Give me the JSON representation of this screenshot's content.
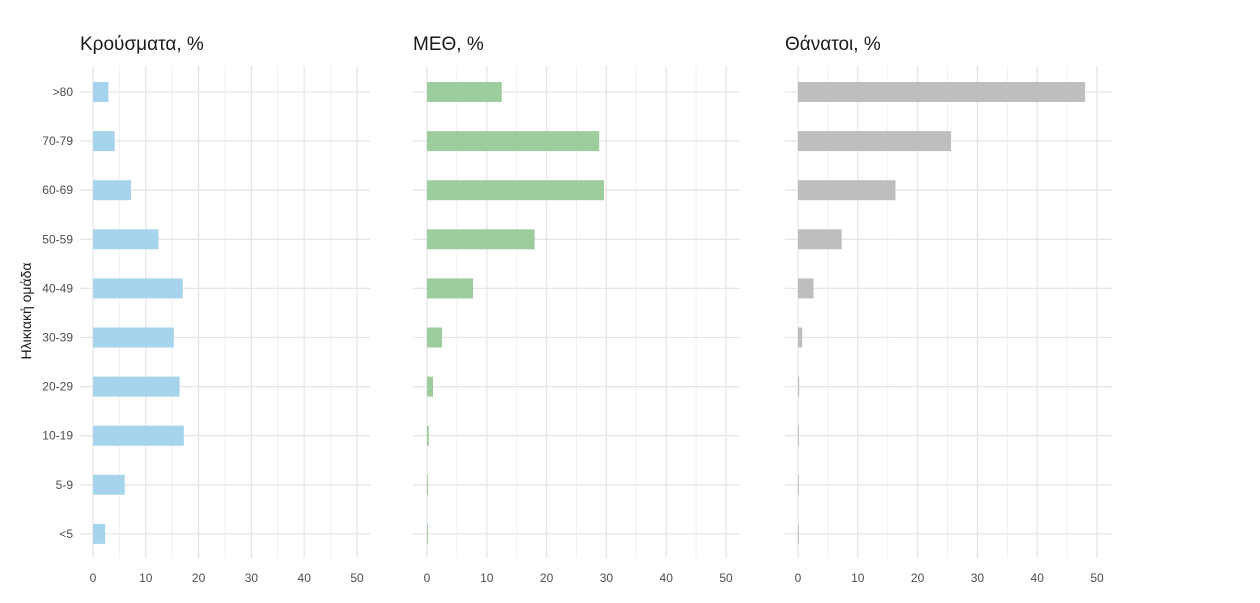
{
  "chart_data": {
    "type": "bar",
    "orientation": "horizontal",
    "ylabel": "Ηλικιακή ομάδα",
    "categories": [
      "<5",
      "5-9",
      "10-19",
      "20-29",
      "30-39",
      "40-49",
      "50-59",
      "60-69",
      "70-79",
      ">80"
    ],
    "grid": true,
    "panels": [
      {
        "title": "Κρούσματα, %",
        "color": "#a6d4ec",
        "xlim": [
          0,
          52
        ],
        "xticks": [
          "0",
          "10",
          "20",
          "30",
          "40",
          "50"
        ],
        "values": [
          2.3,
          6.0,
          17.2,
          16.4,
          15.3,
          17.0,
          12.4,
          7.2,
          4.1,
          2.9
        ]
      },
      {
        "title": "ΜΕΘ, %",
        "color": "#9dcd9c",
        "xlim": [
          0,
          52
        ],
        "xticks": [
          "0",
          "10",
          "20",
          "30",
          "40",
          "50"
        ],
        "values": [
          0.1,
          0.1,
          0.3,
          1.0,
          2.5,
          7.7,
          18.0,
          29.6,
          28.8,
          12.5
        ]
      },
      {
        "title": "Θάνατοι, %",
        "color": "#bebebe",
        "xlim": [
          0,
          52
        ],
        "xticks": [
          "0",
          "10",
          "20",
          "30",
          "40",
          "50"
        ],
        "values": [
          0.05,
          0.0,
          0.1,
          0.2,
          0.7,
          2.6,
          7.3,
          16.3,
          25.6,
          48.0
        ]
      }
    ]
  }
}
